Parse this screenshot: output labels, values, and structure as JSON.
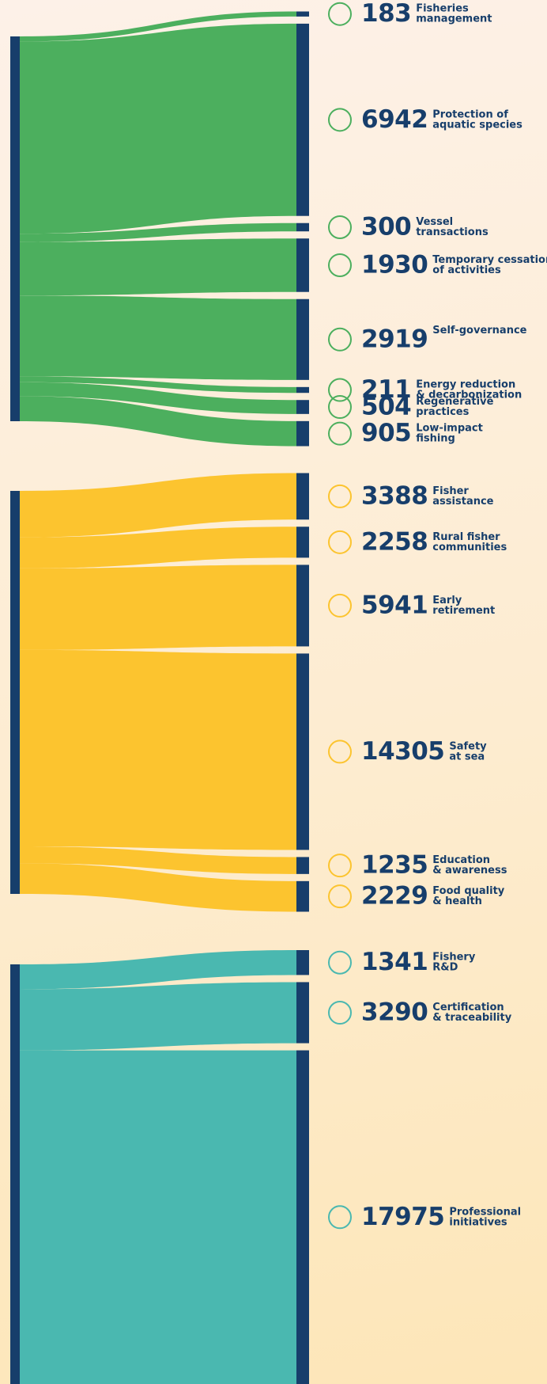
{
  "chart_data": {
    "type": "sankey",
    "groups": [
      {
        "color": "#4caf5e",
        "items": [
          {
            "value": 183,
            "label": [
              "Fisheries",
              "management"
            ]
          },
          {
            "value": 6942,
            "label": [
              "Protection of",
              "aquatic species"
            ]
          },
          {
            "value": 300,
            "label": [
              "Vessel",
              "transactions"
            ]
          },
          {
            "value": 1930,
            "label": [
              "Temporary cessation",
              "of activities"
            ]
          },
          {
            "value": 2919,
            "label": [
              "Self-governance"
            ]
          },
          {
            "value": 211,
            "label": [
              "Energy reduction",
              "& decarbonization"
            ]
          },
          {
            "value": 504,
            "label": [
              "Regenerative",
              "practices"
            ]
          },
          {
            "value": 905,
            "label": [
              "Low-impact",
              "fishing"
            ]
          }
        ]
      },
      {
        "color": "#fcc42f",
        "items": [
          {
            "value": 3388,
            "label": [
              "Fisher",
              "assistance"
            ]
          },
          {
            "value": 2258,
            "label": [
              "Rural fisher",
              "communities"
            ]
          },
          {
            "value": 5941,
            "label": [
              "Early",
              "retirement"
            ]
          },
          {
            "value": 14305,
            "label": [
              "Safety",
              "at sea"
            ]
          },
          {
            "value": 1235,
            "label": [
              "Education",
              "& awareness"
            ]
          },
          {
            "value": 2229,
            "label": [
              "Food quality",
              "& health"
            ]
          }
        ]
      },
      {
        "color": "#4ab8b0",
        "items": [
          {
            "value": 1341,
            "label": [
              "Fishery",
              "R&D"
            ]
          },
          {
            "value": 3290,
            "label": [
              "Certification",
              "& traceability"
            ]
          },
          {
            "value": 17975,
            "label": [
              "Professional",
              "initiatives"
            ]
          }
        ]
      }
    ],
    "node_color": "#173e6b"
  }
}
